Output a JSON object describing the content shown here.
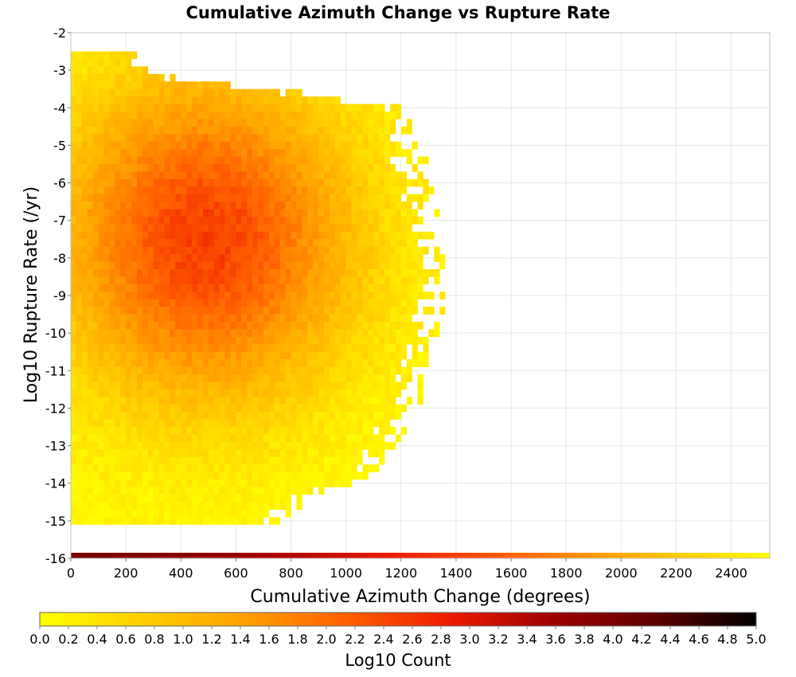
{
  "chart_data": {
    "type": "heatmap",
    "title": "Cumulative Azimuth Change vs Rupture Rate",
    "xlabel": "Cumulative Azimuth Change (degrees)",
    "ylabel": "Log10 Rupture Rate (/yr)",
    "xlim": [
      0,
      2540
    ],
    "ylim": [
      -16,
      -2
    ],
    "x_ticks": [
      "0",
      "200",
      "400",
      "600",
      "800",
      "1000",
      "1200",
      "1400",
      "1600",
      "1800",
      "2000",
      "2200",
      "2400"
    ],
    "y_ticks": [
      "-2",
      "-3",
      "-4",
      "-5",
      "-6",
      "-7",
      "-8",
      "-9",
      "-10",
      "-11",
      "-12",
      "-13",
      "-14",
      "-15",
      "-16"
    ],
    "grid": true,
    "bin_width": 20,
    "bin_height": 0.2,
    "density_model": {
      "description_of_bins": "log10 count per (azimuth, log10 rate) bin, read from the colour scale",
      "peak_log10_count": 2.5,
      "peak_x": 480,
      "peak_y": -7.6,
      "x_range_with_data": [
        0,
        1360
      ],
      "y_range_with_data": [
        -15.2,
        -2.7
      ],
      "outer_edge_x_by_y": [
        {
          "y": -3.2,
          "x": 300
        },
        {
          "y": -4.0,
          "x": 1220
        },
        {
          "y": -5.0,
          "x": 1260
        },
        {
          "y": -6.0,
          "x": 1300
        },
        {
          "y": -7.0,
          "x": 1340
        },
        {
          "y": -8.0,
          "x": 1360
        },
        {
          "y": -9.0,
          "x": 1360
        },
        {
          "y": -10.0,
          "x": 1330
        },
        {
          "y": -11.0,
          "x": 1300
        },
        {
          "y": -12.0,
          "x": 1260
        },
        {
          "y": -13.0,
          "x": 1200
        },
        {
          "y": -14.0,
          "x": 1100
        },
        {
          "y": -15.0,
          "x": 760
        }
      ]
    },
    "baseline_strip": {
      "y": -16,
      "description_of_values": "row of bins at y=-16 spanning all x, log10 count ~4.0 at left decreasing to 0 at right",
      "x_range": [
        0,
        2540
      ],
      "log10_count_at_start": 4.0,
      "log10_count_at_end": 0.0
    },
    "colorbar": {
      "label": "Log10 Count",
      "min": 0.0,
      "max": 5.0,
      "ticks": [
        "0.0",
        "0.2",
        "0.4",
        "0.6",
        "0.8",
        "1.0",
        "1.2",
        "1.4",
        "1.6",
        "1.8",
        "2.0",
        "2.2",
        "2.4",
        "2.6",
        "2.8",
        "3.0",
        "3.2",
        "3.4",
        "3.6",
        "3.8",
        "4.0",
        "4.2",
        "4.4",
        "4.6",
        "4.8",
        "5.0"
      ],
      "colors": [
        "#ffff00",
        "#ffd000",
        "#ffa000",
        "#ff6000",
        "#ee1c00",
        "#a00000",
        "#600000",
        "#000000"
      ],
      "placement": "bottom"
    }
  }
}
